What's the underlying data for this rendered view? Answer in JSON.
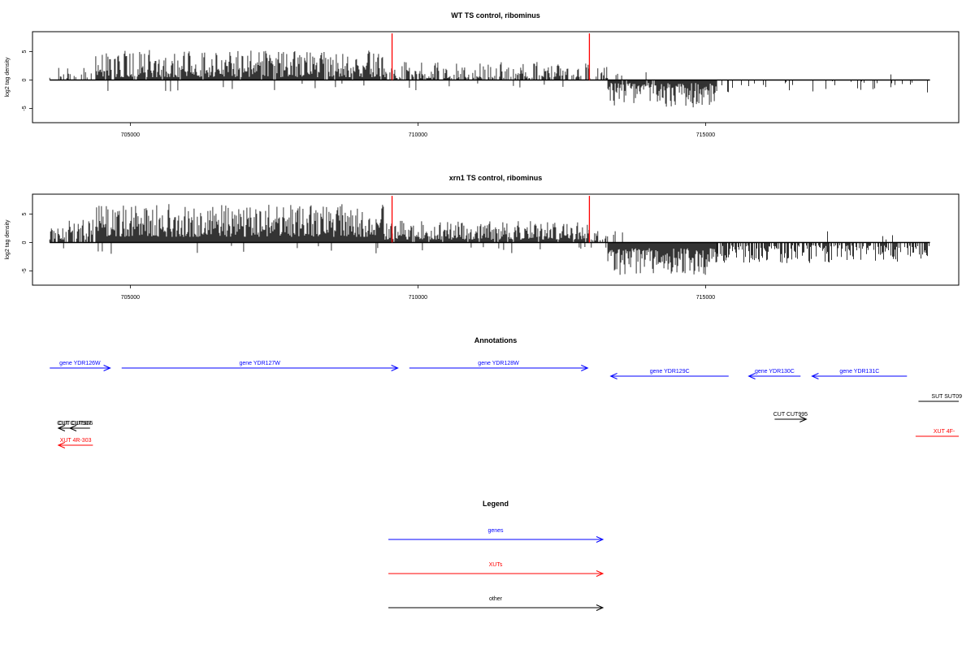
{
  "chart_data": [
    {
      "type": "bar",
      "title": "WT TS control, ribominus",
      "ylabel": "log2 tag density",
      "xlim": [
        703300,
        719400
      ],
      "ylim": [
        -7.5,
        8.5
      ],
      "yticks": [
        -5,
        0,
        5
      ],
      "xticks": [
        705000,
        710000,
        715000
      ],
      "highlight_x": [
        709550,
        712980
      ],
      "highlight_top": 8.2,
      "highlight_color": "#ff0000",
      "data_range": [
        703600,
        718900
      ],
      "profile": [
        {
          "x": [
            703600,
            704400
          ],
          "lo": 0.3,
          "hi": 2.4,
          "sign": 1,
          "density": 0.35
        },
        {
          "x": [
            704400,
            709400
          ],
          "lo": 0.5,
          "hi": 5.3,
          "sign": 1,
          "density": 0.95
        },
        {
          "x": [
            709400,
            713000
          ],
          "lo": 0.3,
          "hi": 3.2,
          "sign": 1,
          "density": 0.6
        },
        {
          "x": [
            713000,
            713300
          ],
          "lo": 0.3,
          "hi": 2.5,
          "sign": 1,
          "density": 0.5
        },
        {
          "x": [
            713300,
            715200
          ],
          "lo": 0.5,
          "hi": 4.8,
          "sign": -1,
          "density": 0.95
        },
        {
          "x": [
            715200,
            718900
          ],
          "lo": 0.2,
          "hi": 2.2,
          "sign": -1,
          "density": 0.18
        }
      ]
    },
    {
      "type": "bar",
      "title": "xrn1 TS control, ribominus",
      "ylabel": "log2 tag density",
      "xlim": [
        703300,
        719400
      ],
      "ylim": [
        -7.5,
        8.5
      ],
      "yticks": [
        -5,
        0,
        5
      ],
      "xticks": [
        705000,
        710000,
        715000
      ],
      "highlight_x": [
        709550,
        712980
      ],
      "highlight_top": 8.2,
      "highlight_color": "#ff0000",
      "data_range": [
        703600,
        718900
      ],
      "profile": [
        {
          "x": [
            703600,
            704400
          ],
          "lo": 0.5,
          "hi": 4.0,
          "sign": 1,
          "density": 0.7
        },
        {
          "x": [
            704400,
            709400
          ],
          "lo": 1.0,
          "hi": 6.8,
          "sign": 1,
          "density": 1.0
        },
        {
          "x": [
            709400,
            713000
          ],
          "lo": 0.5,
          "hi": 3.8,
          "sign": 1,
          "density": 0.95
        },
        {
          "x": [
            713000,
            713300
          ],
          "lo": 0.3,
          "hi": 2.5,
          "sign": 1,
          "density": 0.7
        },
        {
          "x": [
            713300,
            715200
          ],
          "lo": 1.0,
          "hi": 6.0,
          "sign": -1,
          "density": 1.0
        },
        {
          "x": [
            715200,
            718900
          ],
          "lo": 0.5,
          "hi": 3.6,
          "sign": -1,
          "density": 0.65
        }
      ]
    }
  ],
  "annotations": {
    "title": "Annotations",
    "genes": [
      {
        "label": "gene YDR126W",
        "start": 703600,
        "end": 704650,
        "dir": 1
      },
      {
        "label": "gene YDR127W",
        "start": 704850,
        "end": 709650,
        "dir": 1
      },
      {
        "label": "gene YDR128W",
        "start": 709850,
        "end": 712950,
        "dir": 1
      },
      {
        "label": "gene YDR129C",
        "start": 713350,
        "end": 715400,
        "dir": -1
      },
      {
        "label": "gene YDR130C",
        "start": 715750,
        "end": 716650,
        "dir": -1
      },
      {
        "label": "gene YDR131C",
        "start": 716850,
        "end": 718500,
        "dir": -1
      }
    ],
    "other": [
      {
        "label": "SUT SUT09",
        "start": 718700,
        "end": 719400,
        "dir": 0,
        "row": 0
      },
      {
        "label": "CUT CUT995",
        "start": 716200,
        "end": 716750,
        "dir": 1,
        "row": 1
      },
      {
        "label": "CUT CUT507",
        "start": 703750,
        "end": 704300,
        "dir": -1,
        "row": 2
      },
      {
        "label": "CUT CUT506",
        "start": 703950,
        "end": 704150,
        "dir": -1,
        "row": 2
      }
    ],
    "xuts": [
      {
        "label": "XUT 4R-303",
        "start": 703750,
        "end": 704350,
        "dir": -1
      },
      {
        "label": "XUT 4F-",
        "start": 718650,
        "end": 719400,
        "dir": 0
      }
    ]
  },
  "legend": {
    "title": "Legend",
    "items": [
      {
        "label": "genes",
        "color": "#0000ff"
      },
      {
        "label": "XUTs",
        "color": "#ff0000"
      },
      {
        "label": "other",
        "color": "#000000"
      }
    ]
  },
  "colors": {
    "gene": "#0000ff",
    "xut": "#ff0000",
    "other": "#000000",
    "data": "#000000"
  }
}
